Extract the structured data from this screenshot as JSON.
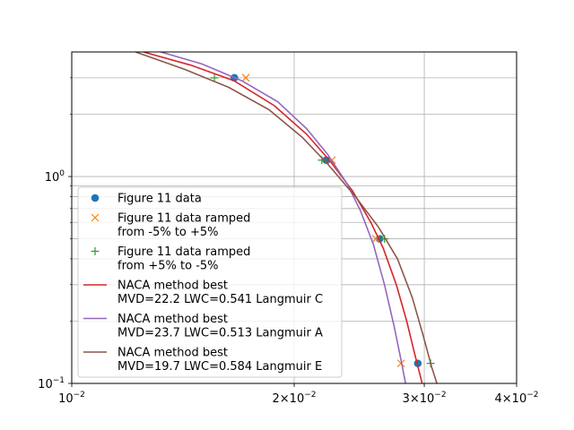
{
  "chart_data": {
    "type": "line",
    "xscale": "log",
    "yscale": "log",
    "xlim": [
      0.01,
      0.04
    ],
    "ylim": [
      0.1,
      4.0
    ],
    "grid": true,
    "legend_position": "lower-left",
    "xticks": [
      {
        "value": 0.01,
        "base": "10",
        "exp": "−2",
        "prefix": ""
      },
      {
        "value": 0.02,
        "base": "10",
        "exp": "−2",
        "prefix": "2×"
      },
      {
        "value": 0.03,
        "base": "10",
        "exp": "−2",
        "prefix": "3×"
      },
      {
        "value": 0.04,
        "base": "10",
        "exp": "−2",
        "prefix": "4×"
      }
    ],
    "yticks": [
      {
        "value": 0.1,
        "base": "10",
        "exp": "−1"
      },
      {
        "value": 1.0,
        "base": "10",
        "exp": "0"
      }
    ],
    "series": [
      {
        "name": "Figure 11 data",
        "kind": "marker",
        "marker": "circle",
        "color": "#1f77b4",
        "points": [
          [
            0.0166,
            3.0
          ],
          [
            0.0221,
            1.2
          ],
          [
            0.0261,
            0.5
          ],
          [
            0.0294,
            0.125
          ]
        ]
      },
      {
        "name": "Figure 11 data ramped from -5% to +5%",
        "label_lines": [
          "Figure 11 data ramped",
          "from -5% to +5%"
        ],
        "kind": "marker",
        "marker": "x",
        "color": "#ff7f0e",
        "points": [
          [
            0.0172,
            3.0
          ],
          [
            0.0225,
            1.2
          ],
          [
            0.0258,
            0.5
          ],
          [
            0.0279,
            0.125
          ]
        ]
      },
      {
        "name": "Figure 11 data ramped from +5% to -5%",
        "label_lines": [
          "Figure 11 data ramped",
          "from +5% to -5%"
        ],
        "kind": "marker",
        "marker": "plus",
        "color": "#2ca02c",
        "points": [
          [
            0.0156,
            3.0
          ],
          [
            0.0218,
            1.2
          ],
          [
            0.0265,
            0.5
          ],
          [
            0.0306,
            0.125
          ]
        ]
      },
      {
        "name": "NACA method best MVD=22.2 LWC=0.541 Langmuir C",
        "label_lines": [
          "NACA method best",
          "MVD=22.2 LWC=0.541 Langmuir C"
        ],
        "kind": "line",
        "color": "#d62728",
        "points": [
          [
            0.0125,
            4.0
          ],
          [
            0.0145,
            3.45
          ],
          [
            0.0166,
            2.9
          ],
          [
            0.0188,
            2.2
          ],
          [
            0.0208,
            1.6
          ],
          [
            0.0224,
            1.18
          ],
          [
            0.024,
            0.85
          ],
          [
            0.0254,
            0.6
          ],
          [
            0.0264,
            0.45
          ],
          [
            0.0275,
            0.3
          ],
          [
            0.0284,
            0.2
          ],
          [
            0.0291,
            0.14
          ],
          [
            0.0298,
            0.1
          ]
        ]
      },
      {
        "name": "NACA method best MVD=23.7 LWC=0.513 Langmuir A",
        "label_lines": [
          "NACA method best",
          "MVD=23.7 LWC=0.513 Langmuir A"
        ],
        "kind": "line",
        "color": "#9467bd",
        "points": [
          [
            0.0132,
            4.0
          ],
          [
            0.015,
            3.5
          ],
          [
            0.017,
            2.9
          ],
          [
            0.019,
            2.3
          ],
          [
            0.0208,
            1.7
          ],
          [
            0.0222,
            1.28
          ],
          [
            0.0236,
            0.92
          ],
          [
            0.0246,
            0.68
          ],
          [
            0.0256,
            0.47
          ],
          [
            0.0265,
            0.3
          ],
          [
            0.0273,
            0.19
          ],
          [
            0.0279,
            0.13
          ],
          [
            0.0283,
            0.1
          ]
        ]
      },
      {
        "name": "NACA method best MVD=19.7 LWC=0.584 Langmuir E",
        "label_lines": [
          "NACA method best",
          "MVD=19.7 LWC=0.584 Langmuir E"
        ],
        "kind": "line",
        "color": "#8c564b",
        "points": [
          [
            0.0122,
            4.0
          ],
          [
            0.0142,
            3.3
          ],
          [
            0.0163,
            2.7
          ],
          [
            0.0185,
            2.1
          ],
          [
            0.0205,
            1.55
          ],
          [
            0.0222,
            1.15
          ],
          [
            0.0242,
            0.8
          ],
          [
            0.026,
            0.57
          ],
          [
            0.0276,
            0.4
          ],
          [
            0.0289,
            0.26
          ],
          [
            0.0299,
            0.17
          ],
          [
            0.0307,
            0.12
          ],
          [
            0.0312,
            0.1
          ]
        ]
      }
    ]
  }
}
